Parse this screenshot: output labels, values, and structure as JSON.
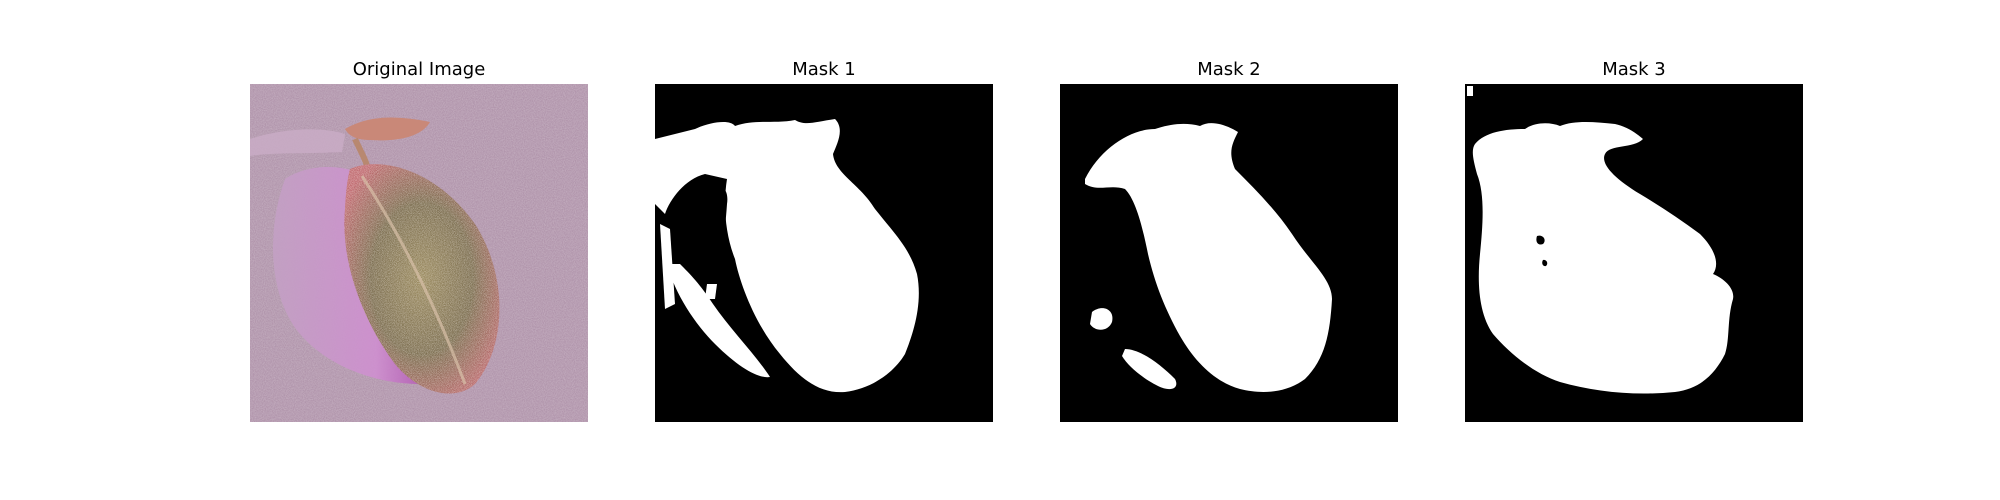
{
  "figure": {
    "panels": [
      {
        "title": "Original Image"
      },
      {
        "title": "Mask 1"
      },
      {
        "title": "Mask 2"
      },
      {
        "title": "Mask 3"
      }
    ]
  },
  "colors": {
    "background": "#ffffff",
    "mask_background": "#000000",
    "mask_foreground": "#ffffff",
    "photo_background": "#a98aa3",
    "stain": "#c894c6",
    "leaf": "#8a7a58"
  }
}
